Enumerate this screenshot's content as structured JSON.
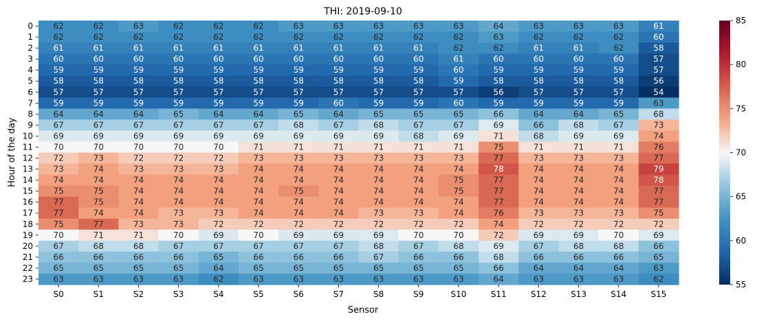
{
  "chart_data": {
    "type": "heatmap",
    "title": "THI: 2019-09-10",
    "xlabel": "Sensor",
    "ylabel": "Hour of the day",
    "x_categories": [
      "S0",
      "S1",
      "S2",
      "S3",
      "S4",
      "S5",
      "S6",
      "S7",
      "S8",
      "S9",
      "S10",
      "S11",
      "S12",
      "S13",
      "S14",
      "S15"
    ],
    "y_categories": [
      "0",
      "1",
      "2",
      "3",
      "4",
      "5",
      "6",
      "7",
      "8",
      "9",
      "10",
      "11",
      "12",
      "13",
      "14",
      "15",
      "16",
      "17",
      "18",
      "19",
      "20",
      "21",
      "22",
      "23"
    ],
    "values": [
      [
        62,
        62,
        63,
        62,
        62,
        62,
        63,
        63,
        63,
        63,
        63,
        64,
        63,
        63,
        63,
        61
      ],
      [
        62,
        62,
        62,
        62,
        62,
        62,
        62,
        62,
        62,
        62,
        62,
        63,
        62,
        62,
        62,
        60
      ],
      [
        61,
        61,
        61,
        61,
        61,
        61,
        61,
        61,
        61,
        61,
        62,
        62,
        61,
        61,
        62,
        58
      ],
      [
        60,
        60,
        60,
        60,
        60,
        60,
        60,
        60,
        60,
        60,
        61,
        60,
        60,
        60,
        60,
        57
      ],
      [
        59,
        59,
        59,
        59,
        59,
        59,
        59,
        59,
        59,
        59,
        60,
        59,
        59,
        59,
        59,
        57
      ],
      [
        58,
        58,
        58,
        58,
        58,
        58,
        58,
        58,
        58,
        58,
        59,
        58,
        58,
        58,
        58,
        56
      ],
      [
        57,
        57,
        57,
        57,
        57,
        57,
        57,
        57,
        57,
        57,
        57,
        56,
        57,
        57,
        57,
        54
      ],
      [
        59,
        59,
        59,
        59,
        59,
        59,
        59,
        60,
        59,
        59,
        60,
        59,
        59,
        59,
        59,
        63
      ],
      [
        64,
        64,
        64,
        65,
        64,
        64,
        65,
        64,
        65,
        65,
        65,
        66,
        64,
        64,
        65,
        68
      ],
      [
        67,
        67,
        67,
        67,
        67,
        67,
        68,
        67,
        68,
        67,
        67,
        69,
        66,
        68,
        67,
        73
      ],
      [
        69,
        69,
        69,
        69,
        69,
        69,
        69,
        69,
        69,
        68,
        69,
        71,
        68,
        69,
        69,
        74
      ],
      [
        70,
        70,
        70,
        70,
        70,
        71,
        71,
        71,
        71,
        71,
        71,
        75,
        71,
        71,
        71,
        76
      ],
      [
        72,
        73,
        72,
        72,
        72,
        73,
        73,
        73,
        73,
        73,
        73,
        77,
        73,
        73,
        73,
        77
      ],
      [
        73,
        74,
        73,
        73,
        73,
        74,
        74,
        74,
        74,
        74,
        74,
        78,
        74,
        74,
        74,
        79
      ],
      [
        74,
        74,
        74,
        74,
        74,
        74,
        74,
        74,
        74,
        74,
        75,
        77,
        74,
        74,
        74,
        78
      ],
      [
        75,
        75,
        74,
        74,
        74,
        74,
        75,
        74,
        74,
        74,
        75,
        77,
        74,
        74,
        74,
        77
      ],
      [
        77,
        75,
        74,
        74,
        74,
        74,
        74,
        74,
        74,
        74,
        74,
        77,
        74,
        74,
        74,
        77
      ],
      [
        77,
        74,
        74,
        73,
        73,
        74,
        74,
        74,
        73,
        73,
        74,
        76,
        73,
        73,
        73,
        75
      ],
      [
        75,
        77,
        73,
        73,
        72,
        72,
        72,
        72,
        72,
        72,
        72,
        74,
        72,
        72,
        72,
        72
      ],
      [
        70,
        71,
        71,
        70,
        69,
        70,
        69,
        69,
        69,
        70,
        70,
        72,
        69,
        69,
        70,
        69
      ],
      [
        67,
        68,
        68,
        67,
        67,
        67,
        67,
        67,
        68,
        67,
        68,
        69,
        67,
        68,
        68,
        66
      ],
      [
        66,
        66,
        66,
        66,
        65,
        66,
        66,
        66,
        67,
        66,
        66,
        68,
        66,
        66,
        66,
        65
      ],
      [
        65,
        65,
        65,
        65,
        64,
        65,
        65,
        65,
        65,
        65,
        65,
        66,
        64,
        64,
        64,
        63
      ],
      [
        63,
        63,
        63,
        63,
        62,
        63,
        63,
        63,
        63,
        63,
        63,
        64,
        63,
        63,
        63,
        62
      ]
    ],
    "vmin": 55,
    "vmax": 85,
    "colormap": "RdBu_r",
    "colorbar_ticks": [
      55,
      60,
      65,
      70,
      75,
      80,
      85
    ],
    "annotated": true,
    "grid": false,
    "legend": "colorbar-right"
  }
}
